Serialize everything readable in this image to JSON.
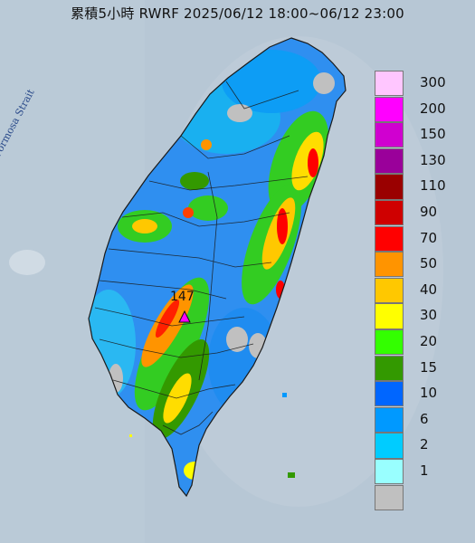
{
  "title": "累積5小時 RWRF 2025/06/12 18:00~06/12 23:00",
  "strait_label": "Formosa Strait",
  "max_label": "147",
  "legend": [
    {
      "label": "300",
      "color": "#ffc6ff"
    },
    {
      "label": "200",
      "color": "#ff00ff"
    },
    {
      "label": "150",
      "color": "#d000d0"
    },
    {
      "label": "130",
      "color": "#9a009a"
    },
    {
      "label": "110",
      "color": "#9a0000"
    },
    {
      "label": "90",
      "color": "#cf0000"
    },
    {
      "label": "70",
      "color": "#ff0000"
    },
    {
      "label": "50",
      "color": "#ff9400"
    },
    {
      "label": "40",
      "color": "#ffc800"
    },
    {
      "label": "30",
      "color": "#ffff00"
    },
    {
      "label": "20",
      "color": "#33ff00"
    },
    {
      "label": "15",
      "color": "#339900"
    },
    {
      "label": "10",
      "color": "#0066ff"
    },
    {
      "label": "6",
      "color": "#0099ff"
    },
    {
      "label": "2",
      "color": "#00ccff"
    },
    {
      "label": "1",
      "color": "#99ffff"
    },
    {
      "label": "",
      "color": "#c0c0c0"
    }
  ]
}
